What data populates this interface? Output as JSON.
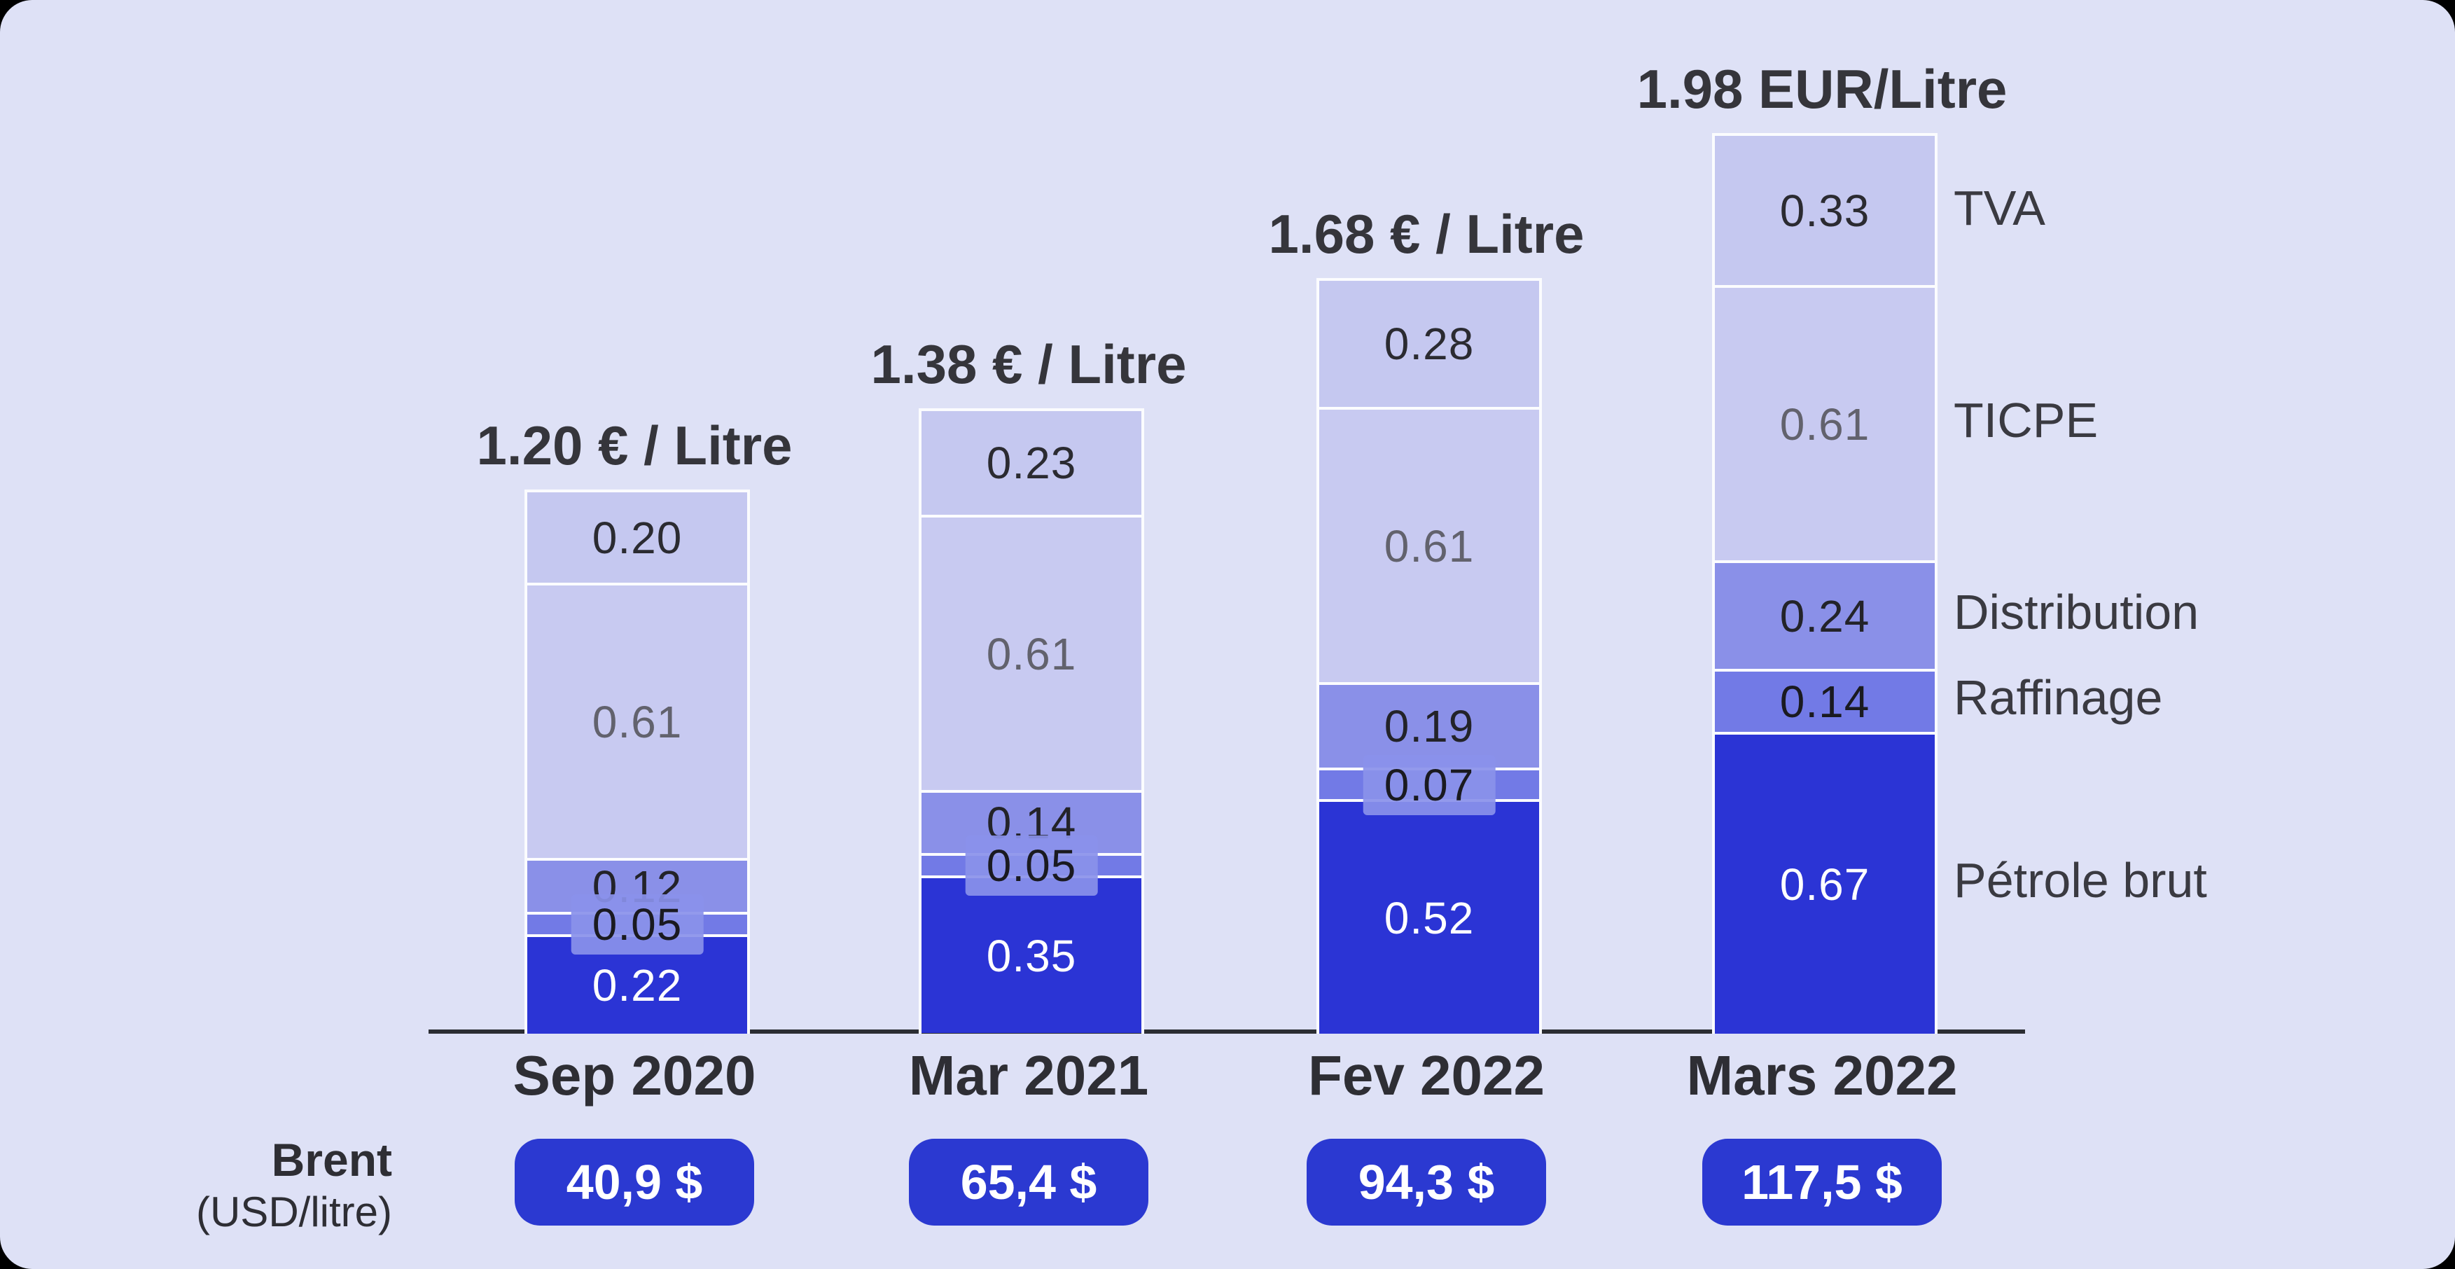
{
  "page": {
    "outer_background": "#000000",
    "card_background": "#dee1f6",
    "axis_color": "#2b2d33",
    "divider_color": "#fbfcfe"
  },
  "chart_data": {
    "type": "bar",
    "stacked": true,
    "orientation": "vertical",
    "unit": "EUR / Litre",
    "categories": [
      "Sep 2020",
      "Mar 2021",
      "Fev 2022",
      "Mars 2022"
    ],
    "bar_total_labels": [
      "1.20 € / Litre",
      "1.38 € / Litre",
      "1.68 € / Litre",
      "1.98 EUR/Litre"
    ],
    "ylim": [
      0,
      2.0
    ],
    "grid": false,
    "legend_position": "right-of-last-bar",
    "components": [
      {
        "name": "TVA",
        "color": "#c5c8f0",
        "label_color": "#2b2b31",
        "values": [
          0.2,
          0.23,
          0.28,
          0.33
        ]
      },
      {
        "name": "TICPE",
        "color": "#c8caf1",
        "label_color": "#62626d",
        "values": [
          0.61,
          0.61,
          0.61,
          0.61
        ]
      },
      {
        "name": "Distribution",
        "color": "#8a90e8",
        "label_color": "#232329",
        "values": [
          0.12,
          0.14,
          0.19,
          0.24
        ]
      },
      {
        "name": "Raffinage",
        "color": "#727ae6",
        "label_color": "#1a1a20",
        "values": [
          0.05,
          0.05,
          0.07,
          0.14
        ],
        "boxed_labels": [
          true,
          true,
          true,
          false
        ]
      },
      {
        "name": "Pétrole brut",
        "color": "#2b34d5",
        "label_color": "#ffffff",
        "values": [
          0.22,
          0.35,
          0.52,
          0.67
        ]
      }
    ],
    "brent_row": {
      "label_line1": "Brent",
      "label_line2": "(USD/litre)",
      "pill_color": "#2b39d1",
      "pill_text_color": "#ffffff",
      "values": [
        "40,9 $",
        "65,4 $",
        "94,3 $",
        "117,5 $"
      ]
    }
  }
}
